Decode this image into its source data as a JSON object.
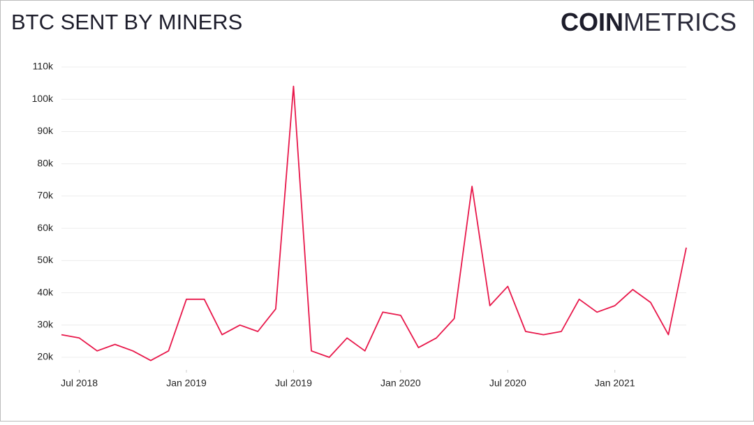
{
  "chart_data": {
    "type": "line",
    "title": "BTC SENT BY MINERS",
    "brand": {
      "bold": "COIN",
      "light": "METRICS"
    },
    "x": [
      "2018-06",
      "2018-07",
      "2018-08",
      "2018-09",
      "2018-10",
      "2018-11",
      "2018-12",
      "2019-01",
      "2019-02",
      "2019-03",
      "2019-04",
      "2019-05",
      "2019-06",
      "2019-07",
      "2019-08",
      "2019-09",
      "2019-10",
      "2019-11",
      "2019-12",
      "2020-01",
      "2020-02",
      "2020-03",
      "2020-04",
      "2020-05",
      "2020-06",
      "2020-07",
      "2020-08",
      "2020-09",
      "2020-10",
      "2020-11",
      "2020-12",
      "2021-01",
      "2021-02",
      "2021-03",
      "2021-04",
      "2021-05"
    ],
    "series": [
      {
        "name": "BTC sent by miners",
        "color": "#e8174a",
        "values": [
          27000,
          26000,
          22000,
          24000,
          22000,
          19000,
          22000,
          38000,
          38000,
          27000,
          30000,
          28000,
          35000,
          104000,
          22000,
          20000,
          26000,
          22000,
          34000,
          33000,
          23000,
          26000,
          32000,
          73000,
          36000,
          42000,
          28000,
          27000,
          28000,
          38000,
          34000,
          36000,
          41000,
          37000,
          27000,
          54000
        ]
      }
    ],
    "xlim": [
      "2018-06",
      "2021-05"
    ],
    "xticks": [
      {
        "value": "2018-07",
        "label": "Jul 2018"
      },
      {
        "value": "2019-01",
        "label": "Jan 2019"
      },
      {
        "value": "2019-07",
        "label": "Jul 2019"
      },
      {
        "value": "2020-01",
        "label": "Jan 2020"
      },
      {
        "value": "2020-07",
        "label": "Jul 2020"
      },
      {
        "value": "2021-01",
        "label": "Jan 2021"
      }
    ],
    "ylim": [
      20000,
      110000
    ],
    "yticks": [
      {
        "value": 20000,
        "label": "20k"
      },
      {
        "value": 30000,
        "label": "30k"
      },
      {
        "value": 40000,
        "label": "40k"
      },
      {
        "value": 50000,
        "label": "50k"
      },
      {
        "value": 60000,
        "label": "60k"
      },
      {
        "value": 70000,
        "label": "70k"
      },
      {
        "value": 80000,
        "label": "80k"
      },
      {
        "value": 90000,
        "label": "90k"
      },
      {
        "value": 100000,
        "label": "100k"
      },
      {
        "value": 110000,
        "label": "110k"
      }
    ],
    "grid": true
  }
}
